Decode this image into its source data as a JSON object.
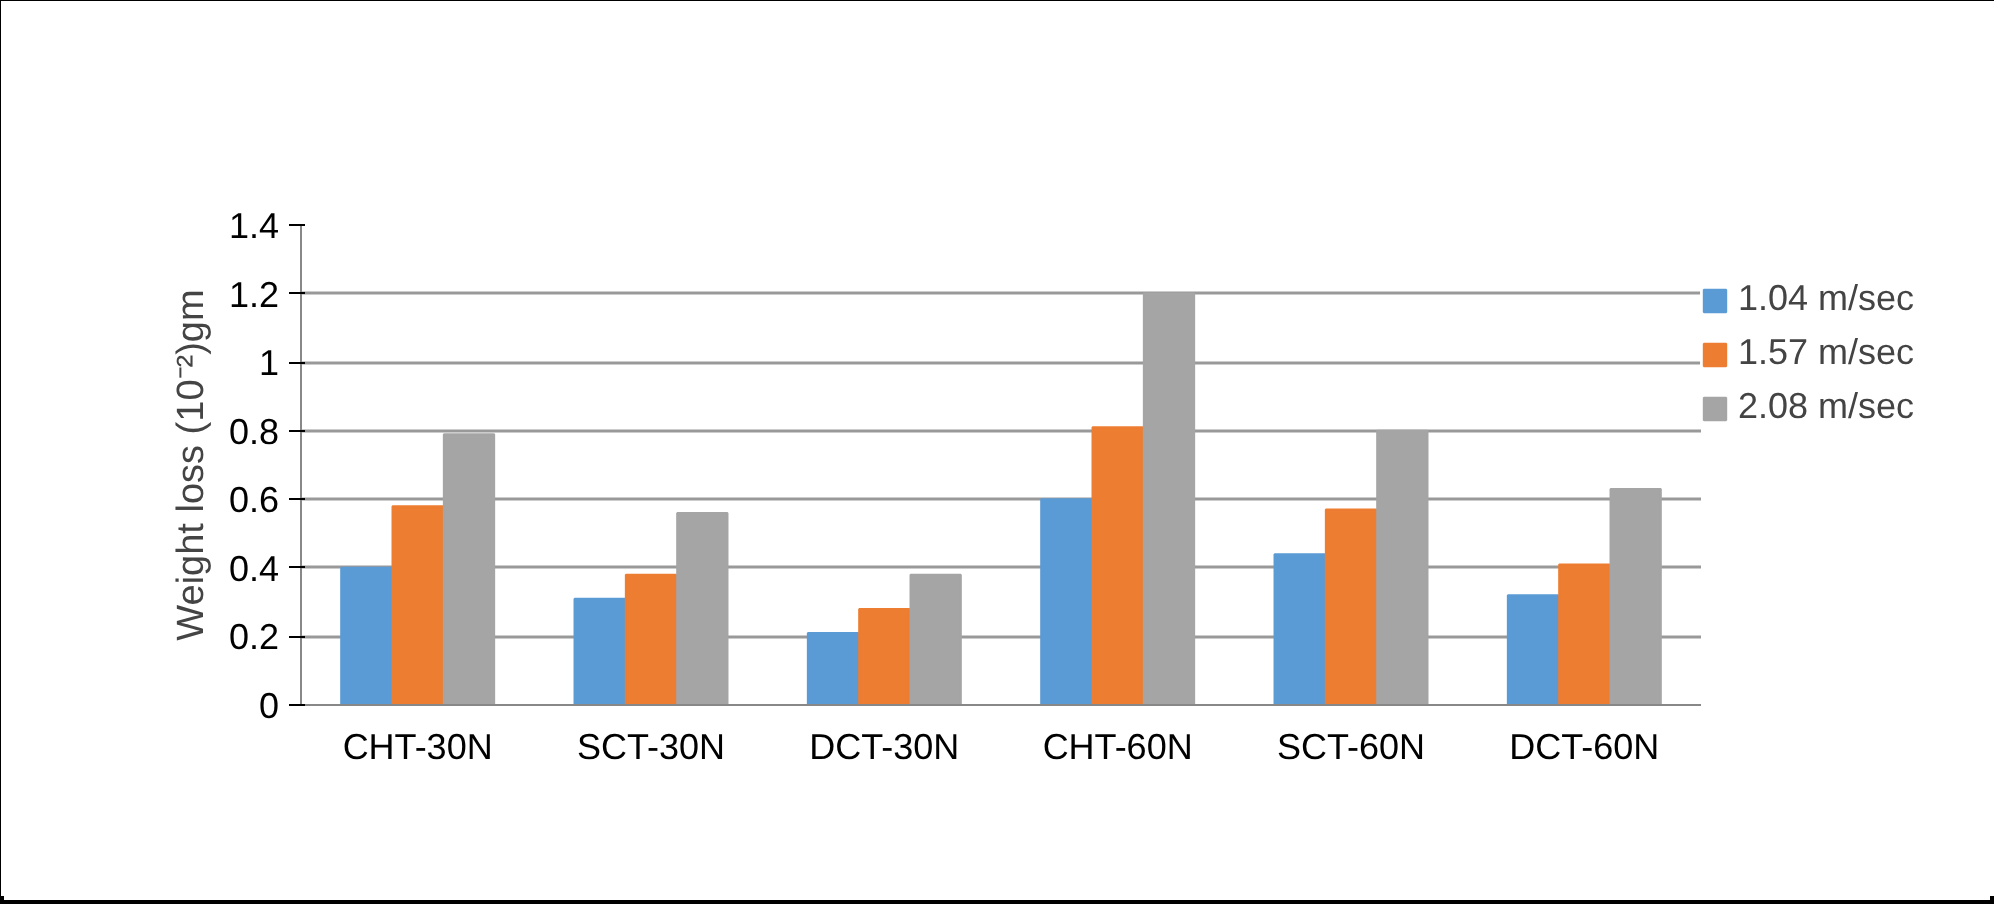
{
  "chart_data": {
    "type": "bar",
    "ylabel": "Weight loss (10⁻²)gm",
    "categories": [
      "CHT-30N",
      "SCT-30N",
      "DCT-30N",
      "CHT-60N",
      "SCT-60N",
      "DCT-60N"
    ],
    "series": [
      {
        "name": "1.04 m/sec",
        "color": "#5b9bd5",
        "values": [
          0.4,
          0.31,
          0.21,
          0.6,
          0.44,
          0.32
        ]
      },
      {
        "name": "1.57 m/sec",
        "color": "#ed7d31",
        "values": [
          0.58,
          0.38,
          0.28,
          0.81,
          0.57,
          0.41
        ]
      },
      {
        "name": "2.08 m/sec",
        "color": "#a5a5a5",
        "values": [
          0.79,
          0.56,
          0.38,
          1.2,
          0.8,
          0.63
        ]
      }
    ],
    "ylim": [
      0,
      1.4
    ],
    "yticks": [
      0,
      0.2,
      0.4,
      0.6,
      0.8,
      1,
      1.2,
      1.4
    ],
    "grid": "y",
    "legend": "top right"
  }
}
